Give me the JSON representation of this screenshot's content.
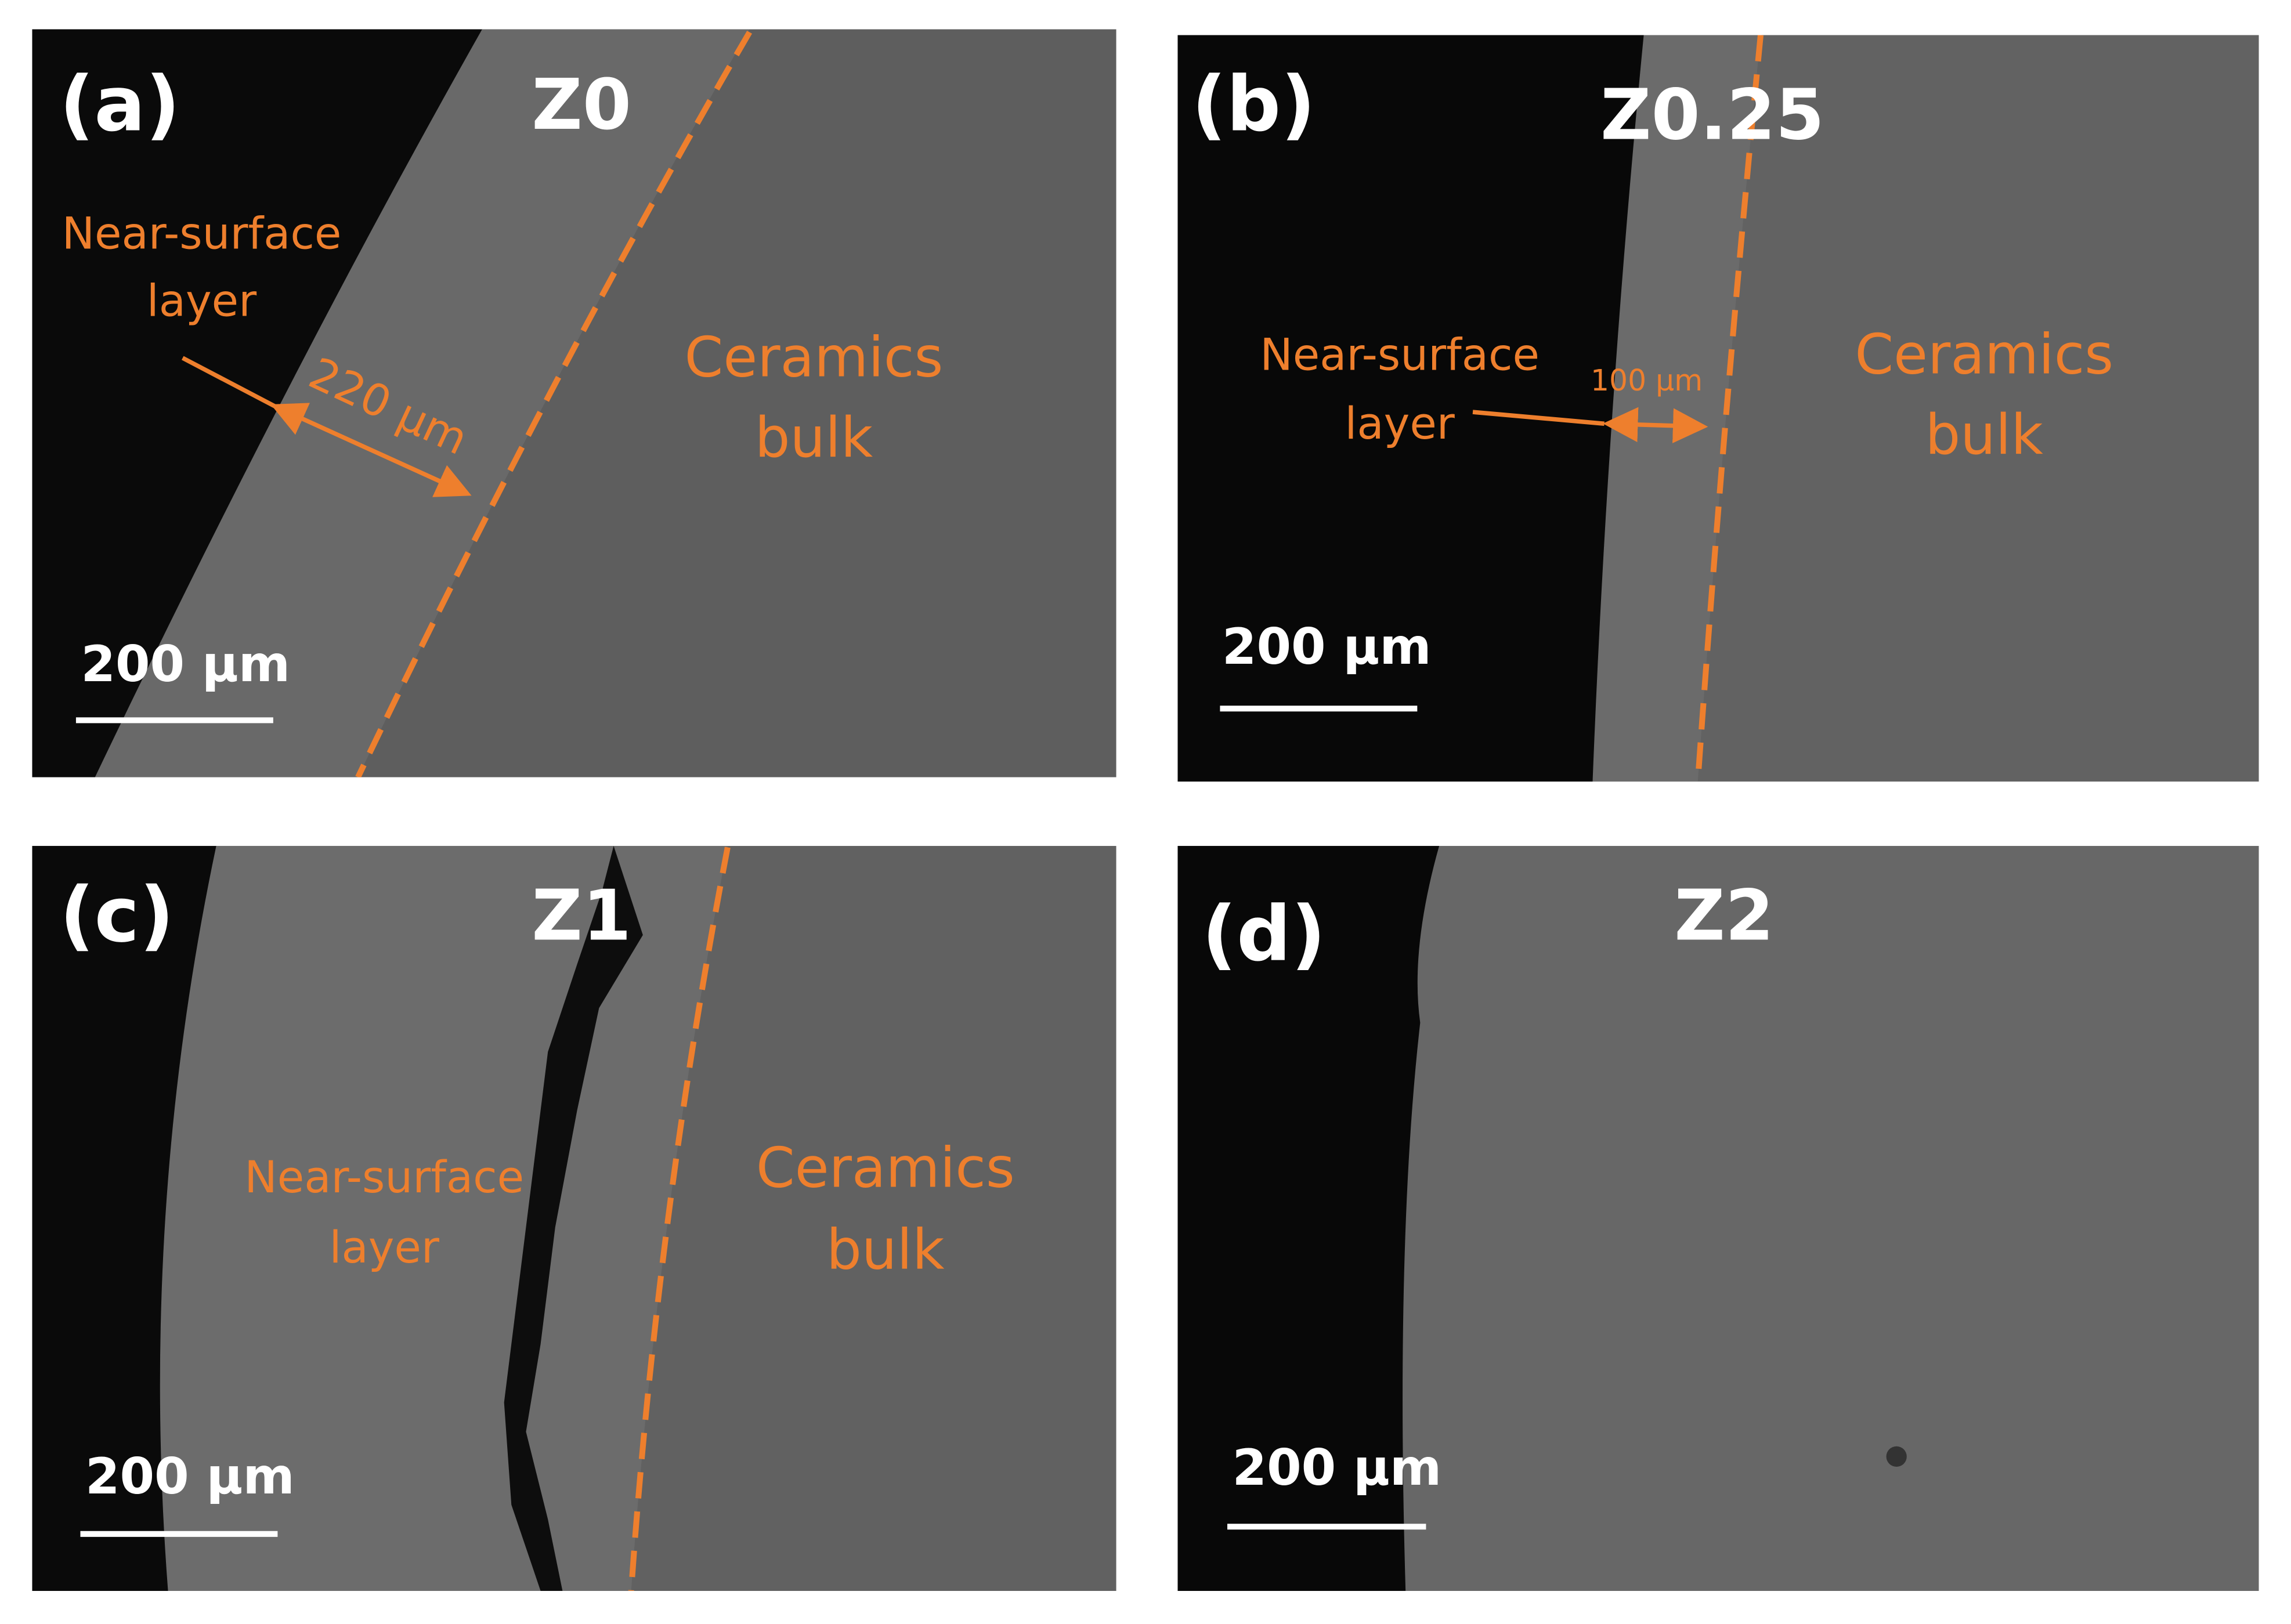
{
  "panels": [
    {
      "label": "(a)",
      "sample": "Z0",
      "layer_text": [
        "Near-surface",
        "layer"
      ],
      "thickness": "220 µm",
      "bulk_text": [
        "Ceramics",
        "bulk"
      ],
      "scale_bar": "200 µm"
    },
    {
      "label": "(b)",
      "sample": "Z0.25",
      "layer_text": [
        "Near-surface",
        "layer"
      ],
      "thickness": "100 µm",
      "bulk_text": [
        "Ceramics",
        "bulk"
      ],
      "scale_bar": "200 µm"
    },
    {
      "label": "(c)",
      "sample": "Z1",
      "layer_text": [
        "Near-surface",
        "layer"
      ],
      "bulk_text": [
        "Ceramics",
        "bulk"
      ],
      "scale_bar": "200 µm"
    },
    {
      "label": "(d)",
      "sample": "Z2",
      "scale_bar": "200 µm"
    }
  ]
}
